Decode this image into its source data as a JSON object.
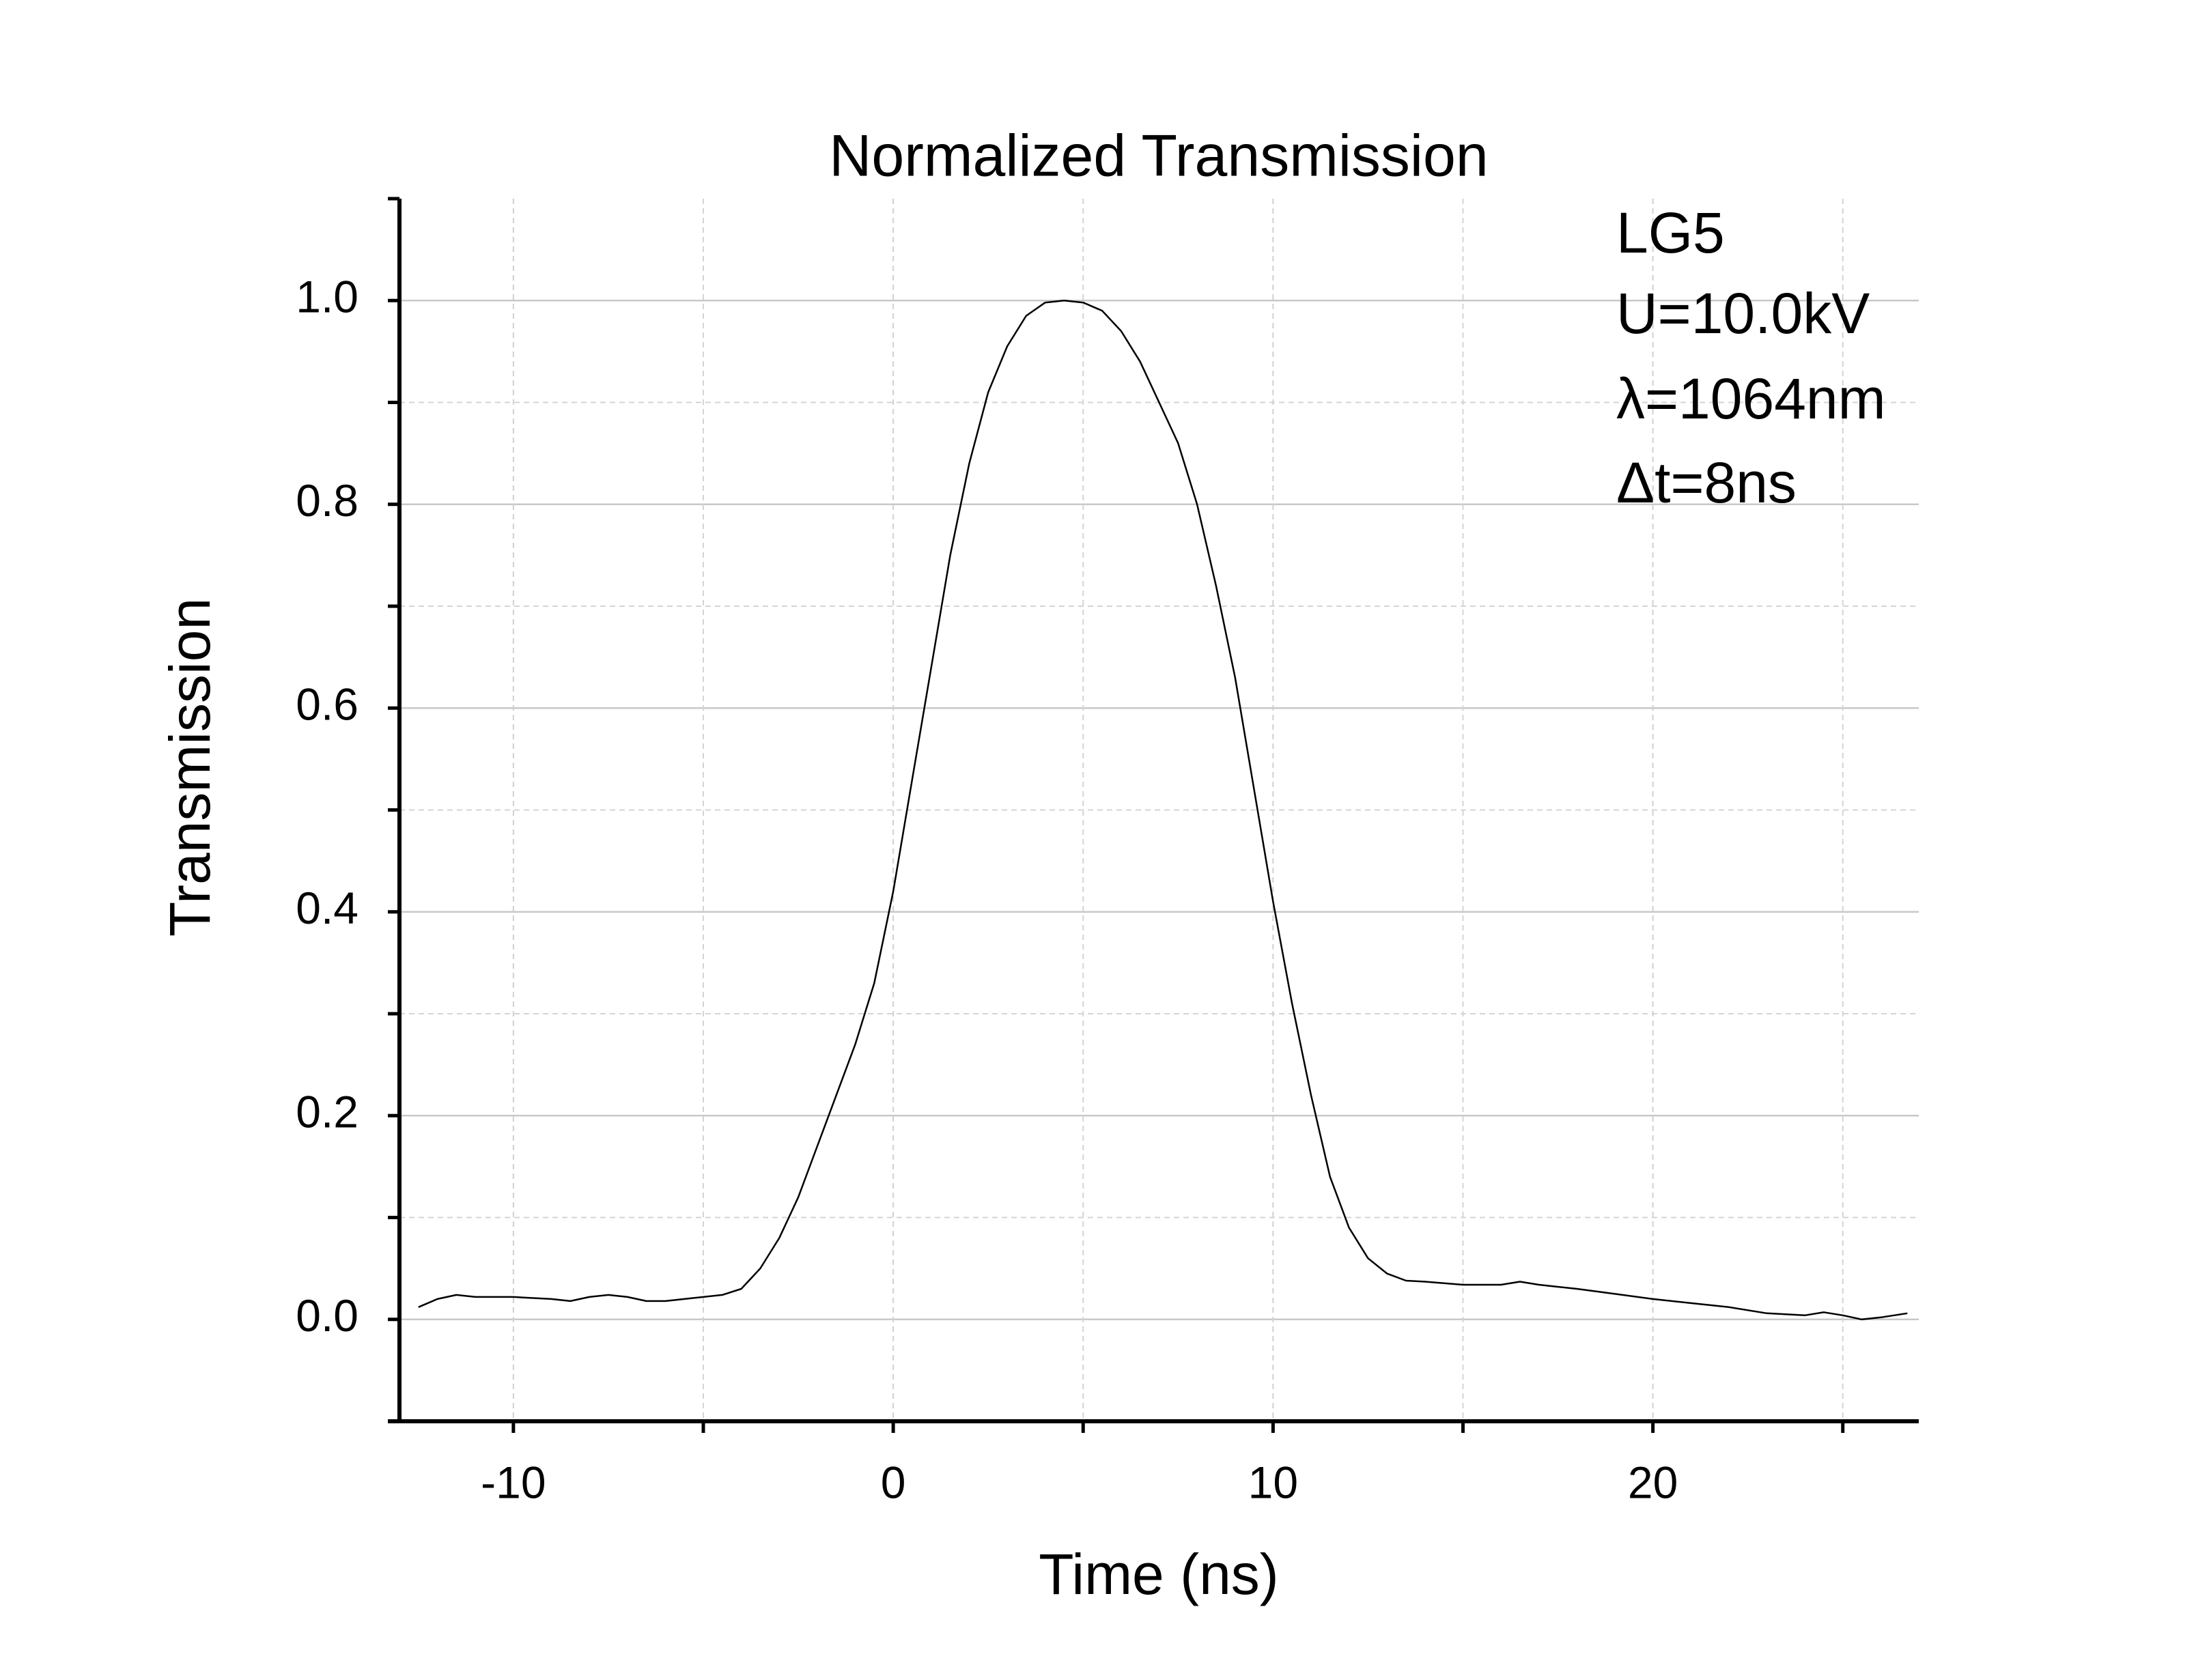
{
  "chart_data": {
    "type": "line",
    "title": "Normalized Transmission",
    "x_label": "Time (ns)",
    "y_label": "Transmission",
    "annotations": [
      "LG5",
      "U=10.0kV",
      "λ=1064nm",
      "Δt=8ns"
    ],
    "x": [
      -12.5,
      -12,
      -11.5,
      -11,
      -10,
      -9,
      -8.5,
      -8,
      -7.5,
      -7,
      -6.5,
      -6,
      -5,
      -4.5,
      -4,
      -3.5,
      -3,
      -2.5,
      -2,
      -1.5,
      -1,
      -0.5,
      0,
      0.5,
      1,
      1.5,
      2,
      2.5,
      3,
      3.5,
      4,
      4.5,
      5,
      5.5,
      6,
      6.5,
      7,
      7.5,
      8,
      8.5,
      9,
      9.5,
      10,
      10.5,
      11,
      11.5,
      12,
      12.5,
      13,
      13.5,
      14,
      15,
      16,
      16.5,
      17,
      18,
      19,
      20,
      21,
      22,
      23,
      24,
      24.5,
      25,
      25.5,
      26,
      26.7
    ],
    "series": [
      {
        "name": "Transmission",
        "color": "#000000",
        "values": [
          0.012,
          0.02,
          0.024,
          0.022,
          0.022,
          0.02,
          0.018,
          0.022,
          0.024,
          0.022,
          0.018,
          0.018,
          0.022,
          0.024,
          0.03,
          0.05,
          0.08,
          0.12,
          0.17,
          0.22,
          0.27,
          0.33,
          0.42,
          0.53,
          0.64,
          0.75,
          0.84,
          0.91,
          0.955,
          0.985,
          0.998,
          1.0,
          0.998,
          0.99,
          0.97,
          0.94,
          0.9,
          0.86,
          0.8,
          0.72,
          0.63,
          0.52,
          0.41,
          0.31,
          0.22,
          0.14,
          0.09,
          0.06,
          0.045,
          0.038,
          0.037,
          0.034,
          0.034,
          0.037,
          0.034,
          0.03,
          0.025,
          0.02,
          0.016,
          0.012,
          0.006,
          0.004,
          0.007,
          0.004,
          0.0,
          0.002,
          0.006
        ]
      }
    ],
    "xlim": [
      -13,
      27
    ],
    "ylim": [
      -0.1,
      1.1
    ],
    "xticks": [
      -10,
      0,
      10,
      20
    ],
    "xminorticks": [
      -5,
      5,
      15,
      25
    ],
    "yticks": [
      {
        "value": 0,
        "label": "0.0"
      },
      0.2,
      0.4,
      0.6,
      0.8,
      {
        "value": 1,
        "label": "1.0"
      }
    ],
    "yminorticks": [
      0.1,
      0.3,
      0.5,
      0.7,
      0.9
    ],
    "grid": true
  }
}
